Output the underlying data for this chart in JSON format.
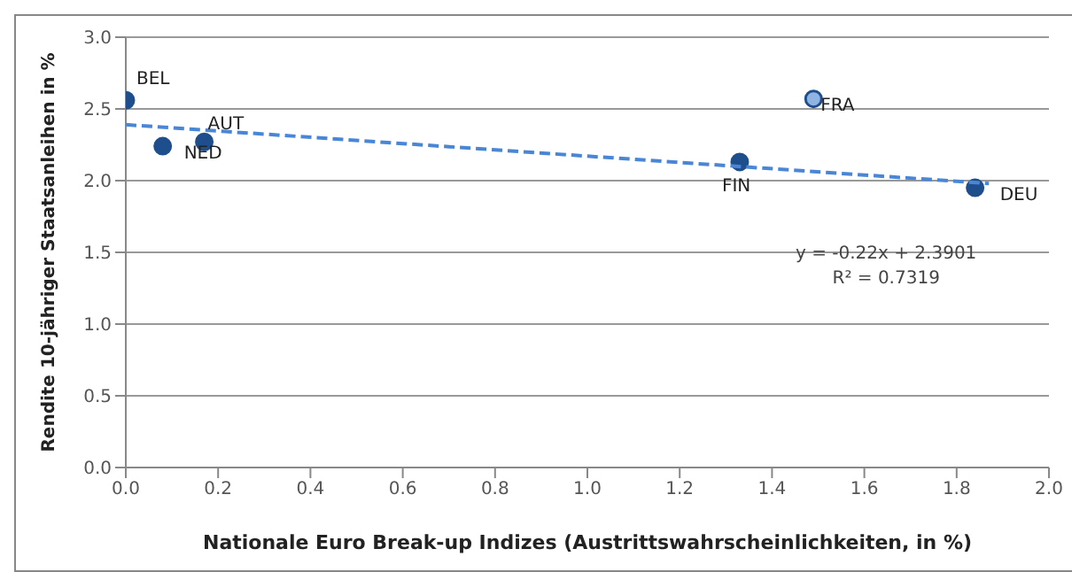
{
  "chart_data": {
    "type": "scatter",
    "xlabel": "Nationale Euro Break-up Indizes  (Austrittswahrscheinlichkeiten, in %)",
    "ylabel": "Rendite 10-jähriger Staatsanleihen in %",
    "xlim": [
      0,
      2
    ],
    "xticks": [
      {
        "value": 0,
        "label": "0.0"
      },
      {
        "value": 0.2,
        "label": "0.2"
      },
      {
        "value": 0.4,
        "label": "0.4"
      },
      {
        "value": 0.6,
        "label": "0.6"
      },
      {
        "value": 0.8,
        "label": "0.8"
      },
      {
        "value": 1,
        "label": "1.0"
      },
      {
        "value": 1.2,
        "label": "1.2"
      },
      {
        "value": 1.4,
        "label": "1.4"
      },
      {
        "value": 1.6,
        "label": "1.6"
      },
      {
        "value": 1.8,
        "label": "1.8"
      },
      {
        "value": 2,
        "label": "2.0"
      }
    ],
    "ylim": [
      0,
      3
    ],
    "yticks": [
      {
        "value": 0,
        "label": "0.0"
      },
      {
        "value": 0.5,
        "label": "0.5"
      },
      {
        "value": 1,
        "label": "1.0"
      },
      {
        "value": 1.5,
        "label": "1.5"
      },
      {
        "value": 2,
        "label": "2.0"
      },
      {
        "value": 2.5,
        "label": "2.5"
      },
      {
        "value": 3,
        "label": "3.0"
      }
    ],
    "grid": "y",
    "marker": "circle",
    "series": [
      {
        "color": "#1f4e8c",
        "colors": [
          "#1f4e8c",
          "#1f4e8c",
          "#1f4e8c",
          "#1f4e8c",
          "#8fb4e3",
          "#1f4e8c"
        ],
        "x": [
          0,
          0.08,
          0.17,
          1.33,
          1.49,
          1.84
        ],
        "values": [
          2.56,
          2.24,
          2.27,
          2.13,
          2.57,
          1.95
        ]
      },
      {
        "type": "line",
        "color": "#4a86d6",
        "line_style": "dashed",
        "marker": "none",
        "x": [
          0,
          1.87
        ],
        "values": [
          2.39,
          1.98
        ]
      }
    ],
    "annotations": [
      {
        "text": "BEL",
        "x": 0,
        "y": 2.56
      },
      {
        "text": "NED",
        "x": 0.08,
        "y": 2.24
      },
      {
        "text": "AUT",
        "x": 0.17,
        "y": 2.27
      },
      {
        "text": "FIN",
        "x": 1.33,
        "y": 2.13
      },
      {
        "text": "FRA",
        "x": 1.49,
        "y": 2.57
      },
      {
        "text": "DEU",
        "x": 1.84,
        "y": 1.95
      },
      "y = -0.22x + 2.3901",
      "R² = 0.7319"
    ]
  }
}
